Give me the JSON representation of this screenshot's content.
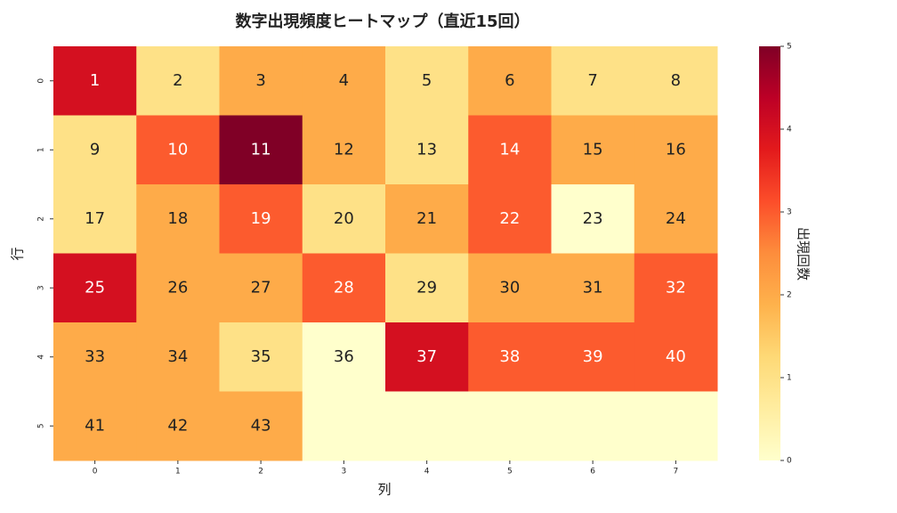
{
  "chart_data": {
    "type": "heatmap",
    "title": "数字出現頻度ヒートマップ（直近15回）",
    "xlabel": "列",
    "ylabel": "行",
    "colorbar_label": "出現回数",
    "x_categories": [
      "0",
      "1",
      "2",
      "3",
      "4",
      "5",
      "6",
      "7"
    ],
    "y_categories": [
      "0",
      "1",
      "2",
      "3",
      "4",
      "5"
    ],
    "values": [
      [
        4,
        1,
        2,
        2,
        1,
        2,
        1,
        1
      ],
      [
        1,
        3,
        5,
        2,
        1,
        3,
        2,
        2
      ],
      [
        1,
        2,
        3,
        1,
        2,
        3,
        0,
        2
      ],
      [
        4,
        2,
        2,
        3,
        1,
        2,
        2,
        3
      ],
      [
        2,
        2,
        1,
        0,
        4,
        3,
        3,
        3
      ],
      [
        2,
        2,
        2,
        0,
        0,
        0,
        0,
        0
      ]
    ],
    "annotations": [
      [
        1,
        2,
        3,
        4,
        5,
        6,
        7,
        8
      ],
      [
        9,
        10,
        11,
        12,
        13,
        14,
        15,
        16
      ],
      [
        17,
        18,
        19,
        20,
        21,
        22,
        23,
        24
      ],
      [
        25,
        26,
        27,
        28,
        29,
        30,
        31,
        32
      ],
      [
        33,
        34,
        35,
        36,
        37,
        38,
        39,
        40
      ],
      [
        41,
        42,
        43,
        null,
        null,
        null,
        null,
        null
      ]
    ],
    "clim": [
      0,
      5
    ],
    "cticks": [
      0,
      1,
      2,
      3,
      4,
      5
    ],
    "colorscale": [
      "#ffffcc",
      "#ffeda0",
      "#fed976",
      "#feb24c",
      "#fd8d3c",
      "#fc4e2a",
      "#e31a1c",
      "#bd0026",
      "#800026"
    ]
  }
}
